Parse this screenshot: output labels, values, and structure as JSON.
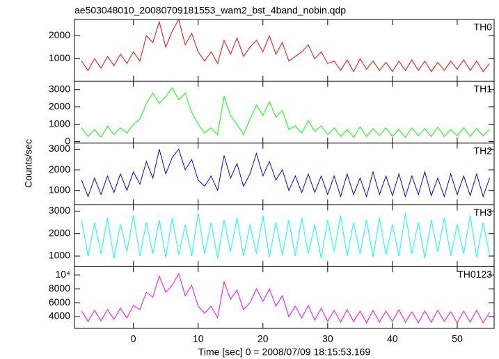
{
  "chart_data": [
    {
      "type": "line",
      "title": "ae503048010_20080709181553_wam2_bst_4band_nobin.qdp",
      "x": [
        -8,
        -7,
        -6,
        -5,
        -4,
        -3,
        -2,
        -1,
        0,
        1,
        2,
        3,
        4,
        5,
        6,
        7,
        8,
        9,
        10,
        11,
        12,
        13,
        14,
        15,
        16,
        17,
        18,
        19,
        20,
        21,
        22,
        23,
        24,
        25,
        26,
        27,
        28,
        29,
        30,
        31,
        32,
        33,
        34,
        35,
        36,
        37,
        38,
        39,
        40,
        41,
        42,
        43,
        44,
        45,
        46,
        47,
        48,
        49,
        50,
        51,
        52,
        53,
        54,
        55
      ],
      "xlim": [
        -9.1,
        55.7
      ],
      "xticks": [
        0,
        10,
        20,
        30,
        40,
        50
      ],
      "ylim": [
        30,
        2700
      ],
      "yticks": [
        1000,
        2000
      ],
      "series": [
        {
          "name": "TH0",
          "color": "#ff0000",
          "values": [
            900,
            500,
            1000,
            600,
            1100,
            700,
            1200,
            800,
            1300,
            900,
            2000,
            1700,
            2600,
            1500,
            2200,
            2700,
            1600,
            2100,
            1300,
            900,
            1300,
            800,
            1800,
            1200,
            1900,
            1100,
            1500,
            1800,
            1300,
            2000,
            1200,
            1700,
            900,
            1100,
            1300,
            1600,
            1000,
            1300,
            800,
            900,
            500,
            950,
            450,
            1000,
            550,
            900,
            500,
            850,
            450,
            900,
            500,
            950,
            500,
            900,
            450,
            850,
            500,
            900,
            550,
            950,
            500,
            900,
            450,
            800
          ]
        }
      ]
    },
    {
      "type": "line",
      "x": [
        -8,
        -7,
        -6,
        -5,
        -4,
        -3,
        -2,
        -1,
        0,
        1,
        2,
        3,
        4,
        5,
        6,
        7,
        8,
        9,
        10,
        11,
        12,
        13,
        14,
        15,
        16,
        17,
        18,
        19,
        20,
        21,
        22,
        23,
        24,
        25,
        26,
        27,
        28,
        29,
        30,
        31,
        32,
        33,
        34,
        35,
        36,
        37,
        38,
        39,
        40,
        41,
        42,
        43,
        44,
        45,
        46,
        47,
        48,
        49,
        50,
        51,
        52,
        53,
        54,
        55
      ],
      "xlim": [
        -9.1,
        55.7
      ],
      "xticks": [
        0,
        10,
        20,
        30,
        40,
        50
      ],
      "ylim": [
        -80,
        3480
      ],
      "yticks": [
        0,
        1000,
        2000,
        3000
      ],
      "series": [
        {
          "name": "TH1",
          "color": "#00ff00",
          "values": [
            800,
            300,
            700,
            250,
            900,
            400,
            800,
            500,
            1000,
            1300,
            2200,
            2800,
            2200,
            2600,
            3100,
            2400,
            2800,
            1700,
            1000,
            500,
            800,
            400,
            2600,
            1500,
            1000,
            400,
            1300,
            2100,
            1500,
            2300,
            1400,
            1800,
            700,
            900,
            500,
            1200,
            600,
            900,
            400,
            800,
            300,
            700,
            250,
            850,
            300,
            750,
            350,
            800,
            300,
            700,
            250,
            800,
            350,
            750,
            300,
            850,
            300,
            700,
            350,
            800,
            300,
            750,
            350,
            700
          ]
        }
      ]
    },
    {
      "type": "line",
      "ylabel": "Counts/sec",
      "x": [
        -8,
        -7,
        -6,
        -5,
        -4,
        -3,
        -2,
        -1,
        0,
        1,
        2,
        3,
        4,
        5,
        6,
        7,
        8,
        9,
        10,
        11,
        12,
        13,
        14,
        15,
        16,
        17,
        18,
        19,
        20,
        21,
        22,
        23,
        24,
        25,
        26,
        27,
        28,
        29,
        30,
        31,
        32,
        33,
        34,
        35,
        36,
        37,
        38,
        39,
        40,
        41,
        42,
        43,
        44,
        45,
        46,
        47,
        48,
        49,
        50,
        51,
        52,
        53,
        54,
        55
      ],
      "xlim": [
        -9.1,
        55.7
      ],
      "xticks": [
        0,
        10,
        20,
        30,
        40,
        50
      ],
      "ylim": [
        300,
        3300
      ],
      "yticks": [
        1000,
        2000,
        3000
      ],
      "series": [
        {
          "name": "TH2",
          "color": "#0000ff",
          "values": [
            1500,
            700,
            1600,
            800,
            1700,
            900,
            1800,
            1000,
            1900,
            1300,
            2400,
            1600,
            3000,
            1800,
            2600,
            3000,
            2000,
            2500,
            1500,
            1200,
            1700,
            1000,
            2700,
            1600,
            2300,
            1200,
            1800,
            2800,
            1700,
            2400,
            1500,
            2000,
            1000,
            1700,
            900,
            1800,
            900,
            1700,
            800,
            1700,
            700,
            1800,
            800,
            1600,
            700,
            1900,
            800,
            1700,
            750,
            1800,
            700,
            1700,
            800,
            1900,
            750,
            1600,
            700,
            1800,
            800,
            1700,
            750,
            1800,
            700,
            1600
          ]
        }
      ]
    },
    {
      "type": "line",
      "x": [
        -8,
        -7,
        -6,
        -5,
        -4,
        -3,
        -2,
        -1,
        0,
        1,
        2,
        3,
        4,
        5,
        6,
        7,
        8,
        9,
        10,
        11,
        12,
        13,
        14,
        15,
        16,
        17,
        18,
        19,
        20,
        21,
        22,
        23,
        24,
        25,
        26,
        27,
        28,
        29,
        30,
        31,
        32,
        33,
        34,
        35,
        36,
        37,
        38,
        39,
        40,
        41,
        42,
        43,
        44,
        45,
        46,
        47,
        48,
        49,
        50,
        51,
        52,
        53,
        54,
        55
      ],
      "xlim": [
        -9.1,
        55.7
      ],
      "xticks": [
        0,
        10,
        20,
        30,
        40,
        50
      ],
      "ylim": [
        530,
        3280
      ],
      "yticks": [
        1000,
        2000,
        3000
      ],
      "series": [
        {
          "name": "TH3",
          "color": "#00ffff",
          "values": [
            2600,
            1000,
            2500,
            1100,
            2700,
            900,
            2400,
            1200,
            2800,
            1000,
            2500,
            1100,
            2600,
            950,
            2700,
            1050,
            2400,
            1000,
            2900,
            1100,
            2500,
            900,
            2600,
            1200,
            2700,
            1000,
            2400,
            1100,
            2800,
            950,
            2500,
            1050,
            2600,
            1000,
            2700,
            1100,
            2400,
            900,
            2600,
            1200,
            2800,
            1000,
            2500,
            1100,
            2600,
            950,
            2700,
            1050,
            2400,
            1000,
            2900,
            1100,
            2500,
            900,
            2600,
            1200,
            2700,
            1000,
            2400,
            1100,
            2800,
            950,
            2500,
            1050
          ]
        }
      ]
    },
    {
      "type": "line",
      "xlabel": "Time [sec] 0 = 2008/07/09 18:15:53.169",
      "x": [
        -8,
        -7,
        -6,
        -5,
        -4,
        -3,
        -2,
        -1,
        0,
        1,
        2,
        3,
        4,
        5,
        6,
        7,
        8,
        9,
        10,
        11,
        12,
        13,
        14,
        15,
        16,
        17,
        18,
        19,
        20,
        21,
        22,
        23,
        24,
        25,
        26,
        27,
        28,
        29,
        30,
        31,
        32,
        33,
        34,
        35,
        36,
        37,
        38,
        39,
        40,
        41,
        42,
        43,
        44,
        45,
        46,
        47,
        48,
        49,
        50,
        51,
        52,
        53,
        54,
        55
      ],
      "xlim": [
        -9.1,
        55.7
      ],
      "xticks": [
        0,
        10,
        20,
        30,
        40,
        50
      ],
      "ylim": [
        2300,
        11200
      ],
      "yticks": [
        4000,
        6000,
        8000,
        {
          "value": 10000,
          "label": "10⁴"
        }
      ],
      "series": [
        {
          "name": "TH0123",
          "color": "#ff00ff",
          "values": [
            4800,
            3300,
            4900,
            3400,
            5000,
            3600,
            5200,
            3800,
            5600,
            5000,
            7500,
            6800,
            9800,
            7500,
            8500,
            10200,
            7000,
            8500,
            5500,
            4500,
            5500,
            3800,
            9000,
            6500,
            7800,
            5000,
            6000,
            8000,
            6200,
            8000,
            5500,
            7000,
            4000,
            5500,
            3800,
            5600,
            3500,
            5200,
            3300,
            4900,
            3200,
            5000,
            3300,
            4800,
            3100,
            4900,
            3200,
            4800,
            3300,
            5000,
            3200,
            4700,
            3100,
            4800,
            3200,
            4900,
            3300,
            4700,
            3100,
            4800,
            3200,
            4900,
            3100,
            4600
          ]
        }
      ]
    }
  ]
}
